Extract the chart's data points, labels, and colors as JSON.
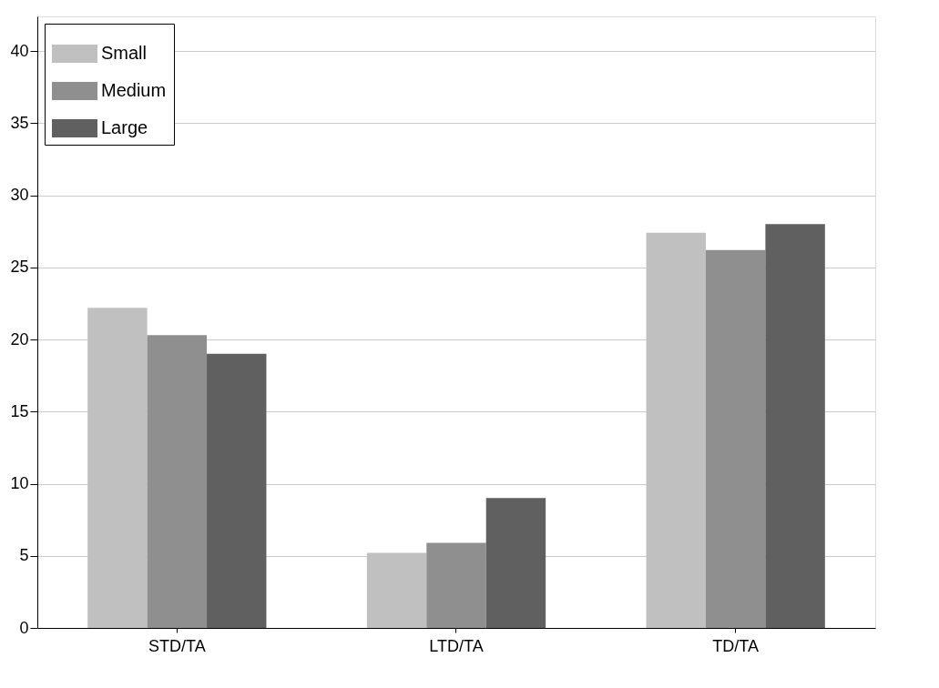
{
  "chart_data": {
    "type": "bar",
    "categories": [
      "STD/TA",
      "LTD/TA",
      "TD/TA"
    ],
    "series": [
      {
        "name": "Small",
        "color": "#c0c0c0",
        "values": [
          22.2,
          5.2,
          27.4
        ]
      },
      {
        "name": "Medium",
        "color": "#8f8f8f",
        "values": [
          20.3,
          5.9,
          26.2
        ]
      },
      {
        "name": "Large",
        "color": "#606060",
        "values": [
          19.0,
          9.0,
          28.0
        ]
      }
    ],
    "ylim": [
      0,
      42.4
    ],
    "yticks": [
      0,
      5,
      10,
      15,
      20,
      25,
      30,
      35,
      40
    ],
    "grid": "y",
    "legend": "top left"
  }
}
